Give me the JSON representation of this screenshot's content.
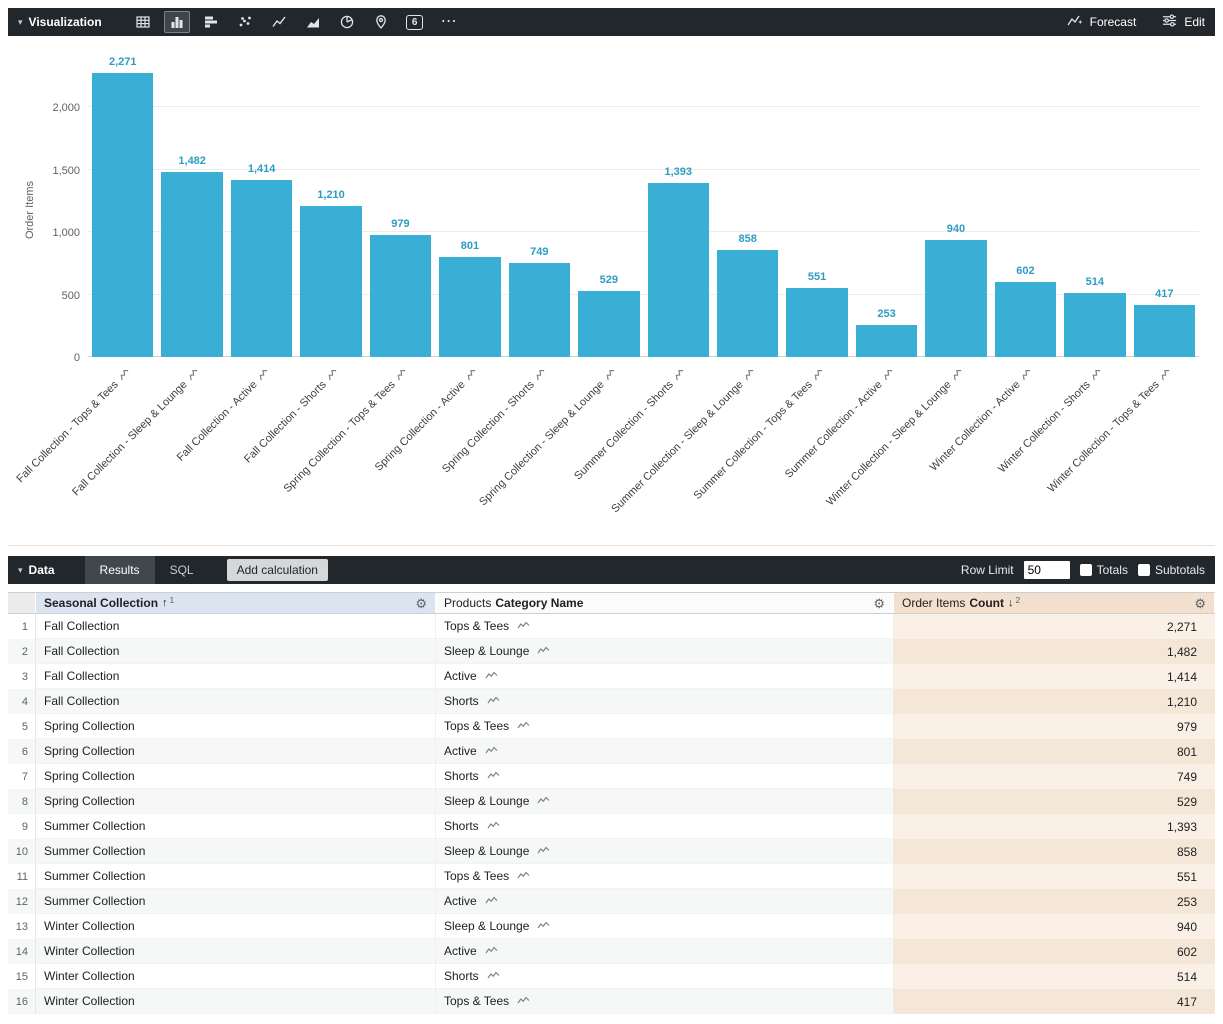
{
  "viz_toolbar": {
    "section_label": "Visualization",
    "viz_types": [
      "table",
      "column",
      "bar",
      "scatter",
      "line",
      "area",
      "pie",
      "map",
      "single-value",
      "more"
    ],
    "selected_type": "column",
    "single_value_glyph": "6",
    "forecast_label": "Forecast",
    "edit_label": "Edit"
  },
  "chart_data": {
    "type": "bar",
    "title": "",
    "xlabel": "",
    "ylabel": "Order Items",
    "bar_color": "#39AFD5",
    "value_label_color": "#2D9DC3",
    "ylim": [
      0,
      2352
    ],
    "yticks": [
      0,
      500,
      1000,
      1500,
      2000
    ],
    "ytick_labels": [
      "0",
      "500",
      "1,000",
      "1,500",
      "2,000"
    ],
    "grid": true,
    "legend": "none",
    "categories": [
      "Fall Collection - Tops & Tees",
      "Fall Collection - Sleep & Lounge",
      "Fall Collection - Active",
      "Fall Collection - Shorts",
      "Spring Collection - Tops & Tees",
      "Spring Collection - Active",
      "Spring Collection - Shorts",
      "Spring Collection - Sleep & Lounge",
      "Summer Collection - Shorts",
      "Summer Collection - Sleep & Lounge",
      "Summer Collection - Tops & Tees",
      "Summer Collection - Active",
      "Winter Collection - Sleep & Lounge",
      "Winter Collection - Active",
      "Winter Collection - Shorts",
      "Winter Collection - Tops & Tees"
    ],
    "values": [
      2271,
      1482,
      1414,
      1210,
      979,
      801,
      749,
      529,
      1393,
      858,
      551,
      253,
      940,
      602,
      514,
      417
    ],
    "value_labels": [
      "2,271",
      "1,482",
      "1,414",
      "1,210",
      "979",
      "801",
      "749",
      "529",
      "1,393",
      "858",
      "551",
      "253",
      "940",
      "602",
      "514",
      "417"
    ]
  },
  "data_toolbar": {
    "section_label": "Data",
    "tabs": [
      {
        "label": "Results",
        "active": true
      },
      {
        "label": "SQL",
        "active": false
      }
    ],
    "add_calculation_label": "Add calculation",
    "row_limit_label": "Row Limit",
    "row_limit_value": "50",
    "totals_label": "Totals",
    "subtotals_label": "Subtotals"
  },
  "table": {
    "columns": [
      {
        "label": "Seasonal Collection",
        "sort_glyph": "↑",
        "sort_index": "1"
      },
      {
        "group": "Products",
        "label": "Category Name"
      },
      {
        "group": "Order Items",
        "label": "Count",
        "sort_glyph": "↓",
        "sort_index": "2"
      }
    ],
    "rows": [
      {
        "n": "1",
        "collection": "Fall Collection",
        "category": "Tops & Tees",
        "count": "2,271"
      },
      {
        "n": "2",
        "collection": "Fall Collection",
        "category": "Sleep & Lounge",
        "count": "1,482"
      },
      {
        "n": "3",
        "collection": "Fall Collection",
        "category": "Active",
        "count": "1,414"
      },
      {
        "n": "4",
        "collection": "Fall Collection",
        "category": "Shorts",
        "count": "1,210"
      },
      {
        "n": "5",
        "collection": "Spring Collection",
        "category": "Tops & Tees",
        "count": "979"
      },
      {
        "n": "6",
        "collection": "Spring Collection",
        "category": "Active",
        "count": "801"
      },
      {
        "n": "7",
        "collection": "Spring Collection",
        "category": "Shorts",
        "count": "749"
      },
      {
        "n": "8",
        "collection": "Spring Collection",
        "category": "Sleep & Lounge",
        "count": "529"
      },
      {
        "n": "9",
        "collection": "Summer Collection",
        "category": "Shorts",
        "count": "1,393"
      },
      {
        "n": "10",
        "collection": "Summer Collection",
        "category": "Sleep & Lounge",
        "count": "858"
      },
      {
        "n": "11",
        "collection": "Summer Collection",
        "category": "Tops & Tees",
        "count": "551"
      },
      {
        "n": "12",
        "collection": "Summer Collection",
        "category": "Active",
        "count": "253"
      },
      {
        "n": "13",
        "collection": "Winter Collection",
        "category": "Sleep & Lounge",
        "count": "940"
      },
      {
        "n": "14",
        "collection": "Winter Collection",
        "category": "Active",
        "count": "602"
      },
      {
        "n": "15",
        "collection": "Winter Collection",
        "category": "Shorts",
        "count": "514"
      },
      {
        "n": "16",
        "collection": "Winter Collection",
        "category": "Tops & Tees",
        "count": "417"
      }
    ]
  }
}
